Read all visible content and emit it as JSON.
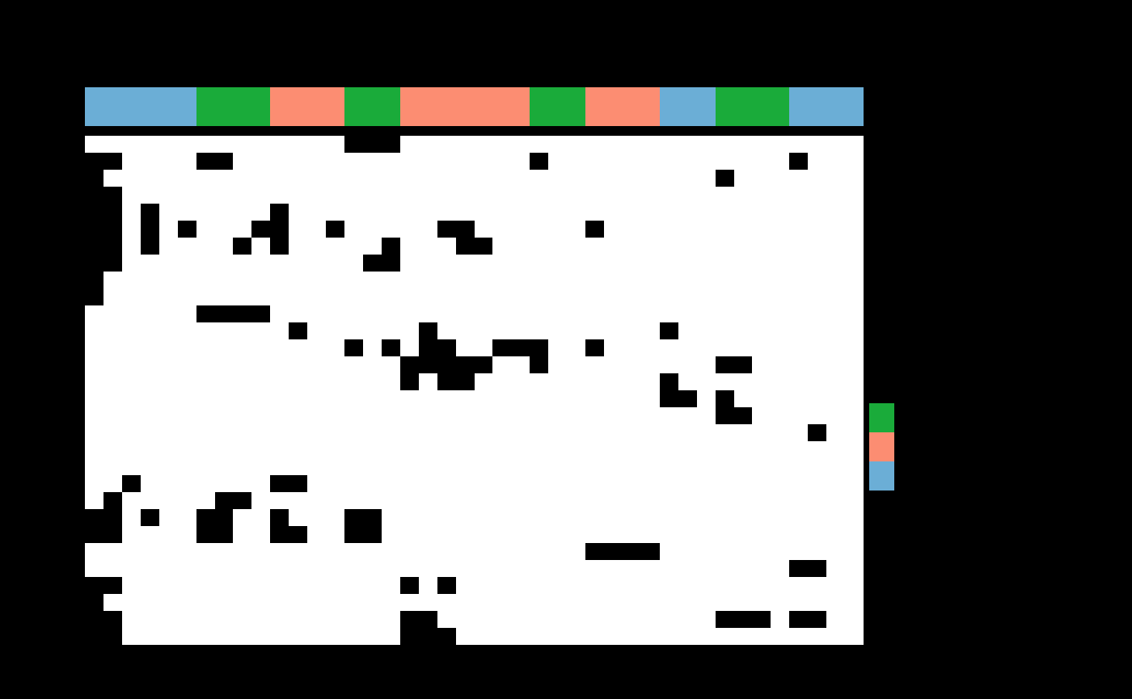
{
  "chart_data": {
    "type": "heatmap",
    "background_color": "#000000",
    "colors": [
      "#000000",
      "#ffffff"
    ],
    "tick_labels": false,
    "cells": [
      [
        1,
        1,
        1,
        1,
        1,
        1,
        1,
        1,
        1,
        1,
        1,
        1,
        1,
        1,
        0,
        0,
        0,
        1,
        1,
        1,
        1,
        1,
        1,
        1,
        1,
        1,
        1,
        1,
        1,
        1,
        1,
        1,
        1,
        1,
        1,
        1,
        1,
        1,
        1,
        1,
        1,
        1
      ],
      [
        0,
        0,
        1,
        1,
        1,
        1,
        0,
        0,
        1,
        1,
        1,
        1,
        1,
        1,
        1,
        1,
        1,
        1,
        1,
        1,
        1,
        1,
        1,
        1,
        0,
        1,
        1,
        1,
        1,
        1,
        1,
        1,
        1,
        1,
        1,
        1,
        1,
        1,
        0,
        1,
        1,
        1
      ],
      [
        0,
        1,
        1,
        1,
        1,
        1,
        1,
        1,
        1,
        1,
        1,
        1,
        1,
        1,
        1,
        1,
        1,
        1,
        1,
        1,
        1,
        1,
        1,
        1,
        1,
        1,
        1,
        1,
        1,
        1,
        1,
        1,
        1,
        1,
        0,
        1,
        1,
        1,
        1,
        1,
        1,
        1
      ],
      [
        0,
        0,
        1,
        1,
        1,
        1,
        1,
        1,
        1,
        1,
        1,
        1,
        1,
        1,
        1,
        1,
        1,
        1,
        1,
        1,
        1,
        1,
        1,
        1,
        1,
        1,
        1,
        1,
        1,
        1,
        1,
        1,
        1,
        1,
        1,
        1,
        1,
        1,
        1,
        1,
        1,
        1
      ],
      [
        0,
        0,
        1,
        0,
        1,
        1,
        1,
        1,
        1,
        1,
        0,
        1,
        1,
        1,
        1,
        1,
        1,
        1,
        1,
        1,
        1,
        1,
        1,
        1,
        1,
        1,
        1,
        1,
        1,
        1,
        1,
        1,
        1,
        1,
        1,
        1,
        1,
        1,
        1,
        1,
        1,
        1
      ],
      [
        0,
        0,
        1,
        0,
        1,
        0,
        1,
        1,
        1,
        0,
        0,
        1,
        1,
        0,
        1,
        1,
        1,
        1,
        1,
        0,
        0,
        1,
        1,
        1,
        1,
        1,
        1,
        0,
        1,
        1,
        1,
        1,
        1,
        1,
        1,
        1,
        1,
        1,
        1,
        1,
        1,
        1
      ],
      [
        0,
        0,
        1,
        0,
        1,
        1,
        1,
        1,
        0,
        1,
        0,
        1,
        1,
        1,
        1,
        1,
        0,
        1,
        1,
        1,
        0,
        0,
        1,
        1,
        1,
        1,
        1,
        1,
        1,
        1,
        1,
        1,
        1,
        1,
        1,
        1,
        1,
        1,
        1,
        1,
        1,
        1
      ],
      [
        0,
        0,
        1,
        1,
        1,
        1,
        1,
        1,
        1,
        1,
        1,
        1,
        1,
        1,
        1,
        0,
        0,
        1,
        1,
        1,
        1,
        1,
        1,
        1,
        1,
        1,
        1,
        1,
        1,
        1,
        1,
        1,
        1,
        1,
        1,
        1,
        1,
        1,
        1,
        1,
        1,
        1
      ],
      [
        0,
        1,
        1,
        1,
        1,
        1,
        1,
        1,
        1,
        1,
        1,
        1,
        1,
        1,
        1,
        1,
        1,
        1,
        1,
        1,
        1,
        1,
        1,
        1,
        1,
        1,
        1,
        1,
        1,
        1,
        1,
        1,
        1,
        1,
        1,
        1,
        1,
        1,
        1,
        1,
        1,
        1
      ],
      [
        0,
        1,
        1,
        1,
        1,
        1,
        1,
        1,
        1,
        1,
        1,
        1,
        1,
        1,
        1,
        1,
        1,
        1,
        1,
        1,
        1,
        1,
        1,
        1,
        1,
        1,
        1,
        1,
        1,
        1,
        1,
        1,
        1,
        1,
        1,
        1,
        1,
        1,
        1,
        1,
        1,
        1
      ],
      [
        1,
        1,
        1,
        1,
        1,
        1,
        0,
        0,
        0,
        0,
        1,
        1,
        1,
        1,
        1,
        1,
        1,
        1,
        1,
        1,
        1,
        1,
        1,
        1,
        1,
        1,
        1,
        1,
        1,
        1,
        1,
        1,
        1,
        1,
        1,
        1,
        1,
        1,
        1,
        1,
        1,
        1
      ],
      [
        1,
        1,
        1,
        1,
        1,
        1,
        1,
        1,
        1,
        1,
        1,
        0,
        1,
        1,
        1,
        1,
        1,
        1,
        0,
        1,
        1,
        1,
        1,
        1,
        1,
        1,
        1,
        1,
        1,
        1,
        1,
        0,
        1,
        1,
        1,
        1,
        1,
        1,
        1,
        1,
        1,
        1
      ],
      [
        1,
        1,
        1,
        1,
        1,
        1,
        1,
        1,
        1,
        1,
        1,
        1,
        1,
        1,
        0,
        1,
        0,
        1,
        0,
        0,
        1,
        1,
        0,
        0,
        0,
        1,
        1,
        0,
        1,
        1,
        1,
        1,
        1,
        1,
        1,
        1,
        1,
        1,
        1,
        1,
        1,
        1
      ],
      [
        1,
        1,
        1,
        1,
        1,
        1,
        1,
        1,
        1,
        1,
        1,
        1,
        1,
        1,
        1,
        1,
        1,
        0,
        0,
        0,
        0,
        0,
        1,
        1,
        0,
        1,
        1,
        1,
        1,
        1,
        1,
        1,
        1,
        1,
        0,
        0,
        1,
        1,
        1,
        1,
        1,
        1
      ],
      [
        1,
        1,
        1,
        1,
        1,
        1,
        1,
        1,
        1,
        1,
        1,
        1,
        1,
        1,
        1,
        1,
        1,
        0,
        1,
        0,
        0,
        1,
        1,
        1,
        1,
        1,
        1,
        1,
        1,
        1,
        1,
        0,
        1,
        1,
        1,
        1,
        1,
        1,
        1,
        1,
        1,
        1
      ],
      [
        1,
        1,
        1,
        1,
        1,
        1,
        1,
        1,
        1,
        1,
        1,
        1,
        1,
        1,
        1,
        1,
        1,
        1,
        1,
        1,
        1,
        1,
        1,
        1,
        1,
        1,
        1,
        1,
        1,
        1,
        1,
        0,
        0,
        1,
        0,
        1,
        1,
        1,
        1,
        1,
        1,
        1
      ],
      [
        1,
        1,
        1,
        1,
        1,
        1,
        1,
        1,
        1,
        1,
        1,
        1,
        1,
        1,
        1,
        1,
        1,
        1,
        1,
        1,
        1,
        1,
        1,
        1,
        1,
        1,
        1,
        1,
        1,
        1,
        1,
        1,
        1,
        1,
        0,
        0,
        1,
        1,
        1,
        1,
        1,
        1
      ],
      [
        1,
        1,
        1,
        1,
        1,
        1,
        1,
        1,
        1,
        1,
        1,
        1,
        1,
        1,
        1,
        1,
        1,
        1,
        1,
        1,
        1,
        1,
        1,
        1,
        1,
        1,
        1,
        1,
        1,
        1,
        1,
        1,
        1,
        1,
        1,
        1,
        1,
        1,
        1,
        0,
        1,
        1
      ],
      [
        1,
        1,
        1,
        1,
        1,
        1,
        1,
        1,
        1,
        1,
        1,
        1,
        1,
        1,
        1,
        1,
        1,
        1,
        1,
        1,
        1,
        1,
        1,
        1,
        1,
        1,
        1,
        1,
        1,
        1,
        1,
        1,
        1,
        1,
        1,
        1,
        1,
        1,
        1,
        1,
        1,
        1
      ],
      [
        1,
        1,
        1,
        1,
        1,
        1,
        1,
        1,
        1,
        1,
        1,
        1,
        1,
        1,
        1,
        1,
        1,
        1,
        1,
        1,
        1,
        1,
        1,
        1,
        1,
        1,
        1,
        1,
        1,
        1,
        1,
        1,
        1,
        1,
        1,
        1,
        1,
        1,
        1,
        1,
        1,
        1
      ],
      [
        1,
        1,
        0,
        1,
        1,
        1,
        1,
        1,
        1,
        1,
        0,
        0,
        1,
        1,
        1,
        1,
        1,
        1,
        1,
        1,
        1,
        1,
        1,
        1,
        1,
        1,
        1,
        1,
        1,
        1,
        1,
        1,
        1,
        1,
        1,
        1,
        1,
        1,
        1,
        1,
        1,
        1
      ],
      [
        1,
        0,
        1,
        1,
        1,
        1,
        1,
        0,
        0,
        1,
        1,
        1,
        1,
        1,
        1,
        1,
        1,
        1,
        1,
        1,
        1,
        1,
        1,
        1,
        1,
        1,
        1,
        1,
        1,
        1,
        1,
        1,
        1,
        1,
        1,
        1,
        1,
        1,
        1,
        1,
        1,
        1
      ],
      [
        0,
        0,
        1,
        0,
        1,
        1,
        0,
        0,
        1,
        1,
        0,
        1,
        1,
        1,
        0,
        0,
        1,
        1,
        1,
        1,
        1,
        1,
        1,
        1,
        1,
        1,
        1,
        1,
        1,
        1,
        1,
        1,
        1,
        1,
        1,
        1,
        1,
        1,
        1,
        1,
        1,
        1
      ],
      [
        0,
        0,
        1,
        1,
        1,
        1,
        0,
        0,
        1,
        1,
        0,
        0,
        1,
        1,
        0,
        0,
        1,
        1,
        1,
        1,
        1,
        1,
        1,
        1,
        1,
        1,
        1,
        1,
        1,
        1,
        1,
        1,
        1,
        1,
        1,
        1,
        1,
        1,
        1,
        1,
        1,
        1
      ],
      [
        1,
        1,
        1,
        1,
        1,
        1,
        1,
        1,
        1,
        1,
        1,
        1,
        1,
        1,
        1,
        1,
        1,
        1,
        1,
        1,
        1,
        1,
        1,
        1,
        1,
        1,
        1,
        0,
        0,
        0,
        0,
        1,
        1,
        1,
        1,
        1,
        1,
        1,
        1,
        1,
        1,
        1
      ],
      [
        1,
        1,
        1,
        1,
        1,
        1,
        1,
        1,
        1,
        1,
        1,
        1,
        1,
        1,
        1,
        1,
        1,
        1,
        1,
        1,
        1,
        1,
        1,
        1,
        1,
        1,
        1,
        1,
        1,
        1,
        1,
        1,
        1,
        1,
        1,
        1,
        1,
        1,
        0,
        0,
        1,
        1
      ],
      [
        0,
        0,
        1,
        1,
        1,
        1,
        1,
        1,
        1,
        1,
        1,
        1,
        1,
        1,
        1,
        1,
        1,
        0,
        1,
        0,
        1,
        1,
        1,
        1,
        1,
        1,
        1,
        1,
        1,
        1,
        1,
        1,
        1,
        1,
        1,
        1,
        1,
        1,
        1,
        1,
        1,
        1
      ],
      [
        0,
        1,
        1,
        1,
        1,
        1,
        1,
        1,
        1,
        1,
        1,
        1,
        1,
        1,
        1,
        1,
        1,
        1,
        1,
        1,
        1,
        1,
        1,
        1,
        1,
        1,
        1,
        1,
        1,
        1,
        1,
        1,
        1,
        1,
        1,
        1,
        1,
        1,
        1,
        1,
        1,
        1
      ],
      [
        0,
        0,
        1,
        1,
        1,
        1,
        1,
        1,
        1,
        1,
        1,
        1,
        1,
        1,
        1,
        1,
        1,
        0,
        0,
        1,
        1,
        1,
        1,
        1,
        1,
        1,
        1,
        1,
        1,
        1,
        1,
        1,
        1,
        1,
        0,
        0,
        0,
        1,
        0,
        0,
        1,
        1
      ],
      [
        0,
        0,
        1,
        1,
        1,
        1,
        1,
        1,
        1,
        1,
        1,
        1,
        1,
        1,
        1,
        1,
        1,
        0,
        0,
        0,
        1,
        1,
        1,
        1,
        1,
        1,
        1,
        1,
        1,
        1,
        1,
        1,
        1,
        1,
        1,
        1,
        1,
        1,
        1,
        1,
        1,
        1
      ]
    ],
    "col_groups": {
      "colors": [
        "#6baed6",
        "#1aab3a",
        "#fc8d72",
        "#1aab3a",
        "#fc8d72",
        "#1aab3a",
        "#fc8d72",
        "#6baed6",
        "#1aab3a",
        "#6baed6"
      ],
      "sizes": [
        6,
        4,
        4,
        3,
        7,
        3,
        4,
        3,
        4,
        4
      ]
    },
    "row_groups": {
      "colors": [
        "#1aab3a",
        "#fc8d72",
        "#6baed6"
      ]
    }
  }
}
